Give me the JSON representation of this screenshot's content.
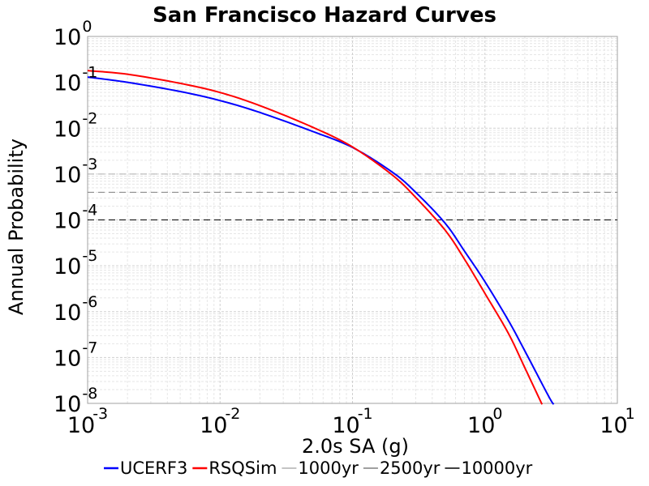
{
  "chart_data": {
    "type": "line",
    "title": "San Francisco Hazard Curves",
    "xlabel": "2.0s SA (g)",
    "ylabel": "Annual Probability",
    "x_scale": "log",
    "y_scale": "log",
    "xlim": [
      0.001,
      10
    ],
    "ylim": [
      1e-08,
      1
    ],
    "x_ticks": [
      {
        "base": "10",
        "exp": "-3",
        "value": 0.001
      },
      {
        "base": "10",
        "exp": "-2",
        "value": 0.01
      },
      {
        "base": "10",
        "exp": "-1",
        "value": 0.1
      },
      {
        "base": "10",
        "exp": "0",
        "value": 1
      },
      {
        "base": "10",
        "exp": "1",
        "value": 10
      }
    ],
    "y_ticks": [
      {
        "base": "10",
        "exp": "0",
        "value": 1
      },
      {
        "base": "10",
        "exp": "-1",
        "value": 0.1
      },
      {
        "base": "10",
        "exp": "-2",
        "value": 0.01
      },
      {
        "base": "10",
        "exp": "-3",
        "value": 0.001
      },
      {
        "base": "10",
        "exp": "-4",
        "value": 0.0001
      },
      {
        "base": "10",
        "exp": "-5",
        "value": 1e-05
      },
      {
        "base": "10",
        "exp": "-6",
        "value": 1e-06
      },
      {
        "base": "10",
        "exp": "-7",
        "value": 1e-07
      },
      {
        "base": "10",
        "exp": "-8",
        "value": 1e-08
      }
    ],
    "grid": true,
    "legend_position": "bottom",
    "series": [
      {
        "name": "UCERF3",
        "color": "#0000ff",
        "style": "solid",
        "x": [
          0.001,
          0.002,
          0.005,
          0.01,
          0.02,
          0.05,
          0.1,
          0.2,
          0.3,
          0.5,
          0.7,
          1.0,
          1.5,
          2.0,
          3.0,
          3.3
        ],
        "y": [
          0.13,
          0.1,
          0.063,
          0.04,
          0.022,
          0.0085,
          0.0038,
          0.0011,
          0.0004,
          8.5e-05,
          2.1e-05,
          4.5e-06,
          6.5e-07,
          1.4e-07,
          1.5e-08,
          9.5e-09
        ]
      },
      {
        "name": "RSQSim",
        "color": "#ff0000",
        "style": "solid",
        "x": [
          0.001,
          0.002,
          0.005,
          0.01,
          0.02,
          0.05,
          0.1,
          0.2,
          0.3,
          0.5,
          0.7,
          1.0,
          1.5,
          2.0,
          2.7
        ],
        "y": [
          0.18,
          0.15,
          0.095,
          0.06,
          0.031,
          0.0105,
          0.0039,
          0.00095,
          0.00031,
          6e-05,
          1.4e-05,
          2.5e-06,
          3.4e-07,
          6e-08,
          9.5e-09
        ]
      },
      {
        "name": "1000yr",
        "color": "#b0b0b0",
        "style": "dashed",
        "x": [
          0.001,
          10
        ],
        "y": [
          0.001,
          0.001
        ]
      },
      {
        "name": "2500yr",
        "color": "#808080",
        "style": "dashed",
        "x": [
          0.001,
          10
        ],
        "y": [
          0.0004,
          0.0004
        ]
      },
      {
        "name": "10000yr",
        "color": "#000000",
        "style": "dashed",
        "x": [
          0.001,
          10
        ],
        "y": [
          0.0001,
          0.0001
        ]
      }
    ]
  }
}
